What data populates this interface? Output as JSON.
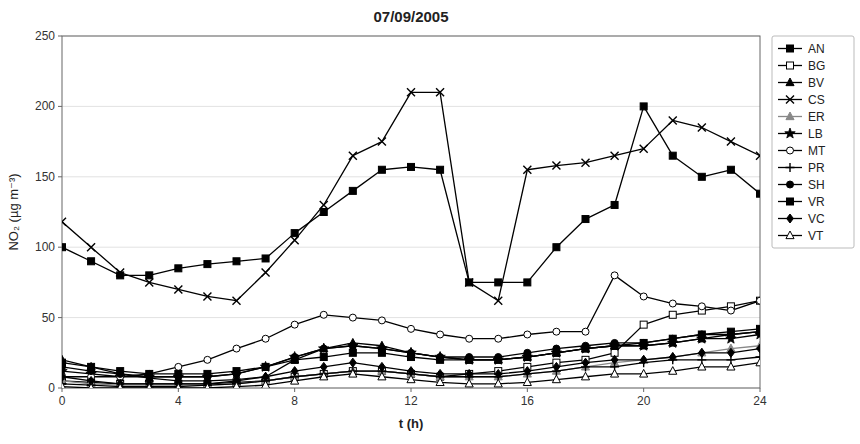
{
  "chart_data": {
    "type": "line",
    "title": "07/09/2005",
    "xlabel": "t (h)",
    "ylabel": "NO₂ (µg m⁻³)",
    "xlim": [
      0,
      24
    ],
    "ylim": [
      0,
      250
    ],
    "xticks": [
      0,
      4,
      8,
      12,
      16,
      20,
      24
    ],
    "yticks": [
      0,
      50,
      100,
      150,
      200,
      250
    ],
    "grid": "y",
    "legend": "right",
    "x": [
      0,
      1,
      2,
      3,
      4,
      5,
      6,
      7,
      8,
      9,
      10,
      11,
      12,
      13,
      14,
      15,
      16,
      17,
      18,
      19,
      20,
      21,
      22,
      23,
      24
    ],
    "series": [
      {
        "name": "AN",
        "color": "#000000",
        "marker": "square",
        "line_style": "solid",
        "values": [
          100,
          90,
          80,
          80,
          85,
          88,
          90,
          92,
          110,
          125,
          140,
          155,
          157,
          155,
          75,
          75,
          75,
          100,
          120,
          130,
          200,
          165,
          150,
          155,
          138
        ]
      },
      {
        "name": "BG",
        "color": "#000000",
        "marker": "hollow-square",
        "line_style": "solid",
        "values": [
          5,
          4,
          3,
          3,
          3,
          3,
          4,
          5,
          8,
          10,
          12,
          12,
          10,
          8,
          10,
          12,
          15,
          18,
          20,
          25,
          45,
          52,
          55,
          58,
          62
        ]
      },
      {
        "name": "BV",
        "color": "#000000",
        "marker": "triangle",
        "line_style": "solid",
        "values": [
          20,
          15,
          10,
          7,
          5,
          5,
          6,
          8,
          20,
          28,
          32,
          30,
          25,
          22,
          20,
          20,
          22,
          25,
          28,
          30,
          30,
          32,
          35,
          38,
          40
        ]
      },
      {
        "name": "CS",
        "color": "#000000",
        "marker": "x",
        "line_style": "solid",
        "values": [
          118,
          100,
          82,
          75,
          70,
          65,
          62,
          82,
          105,
          130,
          165,
          175,
          210,
          210,
          75,
          62,
          155,
          158,
          160,
          165,
          170,
          190,
          185,
          175,
          165
        ]
      },
      {
        "name": "ER",
        "color": "#888888",
        "marker": "triangle",
        "line_style": "solid",
        "values": [
          5,
          3,
          2,
          2,
          2,
          2,
          3,
          5,
          8,
          10,
          12,
          12,
          10,
          8,
          8,
          8,
          10,
          12,
          15,
          18,
          20,
          22,
          25,
          28,
          30
        ]
      },
      {
        "name": "LB",
        "color": "#000000",
        "marker": "star",
        "line_style": "solid",
        "values": [
          12,
          10,
          8,
          8,
          8,
          8,
          10,
          15,
          22,
          28,
          30,
          28,
          25,
          22,
          20,
          20,
          22,
          25,
          28,
          30,
          30,
          32,
          35,
          35,
          38
        ]
      },
      {
        "name": "MT",
        "color": "#000000",
        "marker": "hollow-circle",
        "line_style": "solid",
        "values": [
          8,
          8,
          8,
          10,
          15,
          20,
          28,
          35,
          45,
          52,
          50,
          48,
          42,
          38,
          35,
          35,
          38,
          40,
          40,
          80,
          65,
          60,
          58,
          55,
          62
        ]
      },
      {
        "name": "PR",
        "color": "#000000",
        "marker": "plus",
        "line_style": "solid",
        "values": [
          3,
          2,
          1,
          1,
          1,
          2,
          3,
          5,
          8,
          10,
          12,
          12,
          10,
          8,
          8,
          8,
          10,
          12,
          15,
          15,
          18,
          20,
          20,
          20,
          22
        ]
      },
      {
        "name": "SH",
        "color": "#000000",
        "marker": "circle",
        "line_style": "solid",
        "values": [
          15,
          12,
          10,
          8,
          8,
          8,
          10,
          15,
          22,
          28,
          30,
          28,
          25,
          22,
          22,
          22,
          25,
          28,
          30,
          32,
          32,
          35,
          38,
          38,
          40
        ]
      },
      {
        "name": "VR",
        "color": "#000000",
        "marker": "square",
        "line_style": "solid",
        "values": [
          18,
          15,
          12,
          10,
          10,
          10,
          12,
          15,
          20,
          22,
          25,
          25,
          22,
          20,
          20,
          20,
          22,
          25,
          28,
          30,
          32,
          35,
          38,
          40,
          42
        ]
      },
      {
        "name": "VC",
        "color": "#000000",
        "marker": "diamond",
        "line_style": "solid",
        "values": [
          8,
          5,
          3,
          3,
          3,
          3,
          5,
          8,
          12,
          15,
          18,
          15,
          12,
          10,
          10,
          10,
          12,
          15,
          18,
          20,
          20,
          22,
          25,
          25,
          28
        ]
      },
      {
        "name": "VT",
        "color": "#000000",
        "marker": "hollow-triangle",
        "line_style": "solid",
        "values": [
          1,
          0,
          0,
          0,
          0,
          0,
          1,
          2,
          5,
          8,
          10,
          8,
          6,
          4,
          3,
          3,
          4,
          6,
          8,
          10,
          10,
          12,
          15,
          15,
          18
        ]
      }
    ]
  }
}
